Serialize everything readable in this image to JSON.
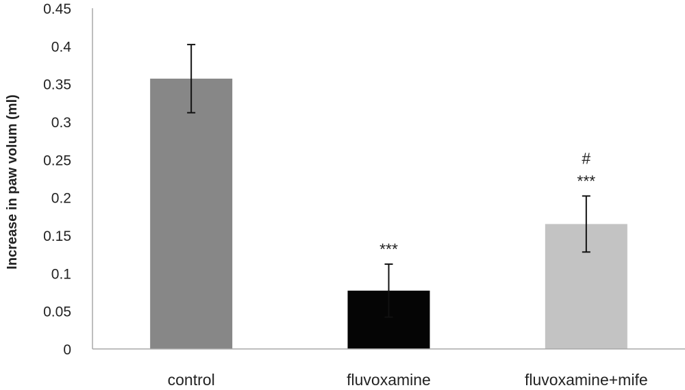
{
  "chart_data": {
    "type": "bar",
    "title": "",
    "xlabel": "",
    "ylabel": "Increase in paw volum (ml)",
    "categories": [
      "control",
      "fluvoxamine",
      "fluvoxamine+mife"
    ],
    "values": [
      0.357,
      0.077,
      0.165
    ],
    "error": [
      0.045,
      0.035,
      0.037
    ],
    "annotations": [
      [
        "",
        "",
        ""
      ],
      [
        "***",
        "",
        ""
      ],
      [
        "***",
        "#",
        ""
      ]
    ],
    "ylim": [
      0,
      0.45
    ],
    "yticks": [
      0,
      0.05,
      0.1,
      0.15,
      0.2,
      0.25,
      0.3,
      0.35,
      0.4,
      0.45
    ],
    "ytick_labels": [
      "0",
      "0.05",
      "0.1",
      "0.15",
      "0.2",
      "0.25",
      "0.3",
      "0.35",
      "0.4",
      "0.45"
    ],
    "colors": [
      "#878787",
      "#050505",
      "#c3c3c3"
    ],
    "axis_color": "#a8a8a8",
    "text_color": "#222222",
    "grid": false,
    "legend": "none"
  }
}
